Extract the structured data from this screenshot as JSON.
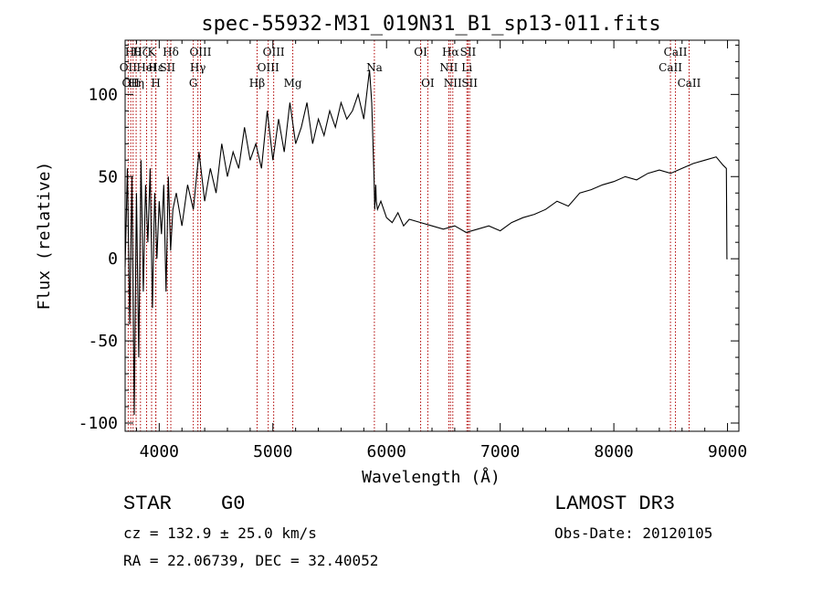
{
  "chart_data": {
    "type": "line",
    "title": "spec-55932-M31_019N31_B1_sp13-011.fits",
    "xlabel": "Wavelength (Å)",
    "ylabel": "Flux (relative)",
    "xlim": [
      3700,
      9100
    ],
    "ylim": [
      -105,
      133
    ],
    "x_ticks": [
      4000,
      5000,
      6000,
      7000,
      8000,
      9000
    ],
    "y_ticks": [
      -100,
      -50,
      0,
      50,
      100
    ],
    "series": [
      {
        "name": "spectrum",
        "x": [
          3700,
          3720,
          3740,
          3760,
          3780,
          3800,
          3820,
          3840,
          3860,
          3880,
          3900,
          3920,
          3940,
          3960,
          3980,
          4000,
          4020,
          4040,
          4060,
          4080,
          4100,
          4120,
          4150,
          4200,
          4250,
          4300,
          4350,
          4400,
          4450,
          4500,
          4550,
          4600,
          4650,
          4700,
          4750,
          4800,
          4850,
          4900,
          4950,
          5000,
          5050,
          5100,
          5150,
          5200,
          5250,
          5300,
          5350,
          5400,
          5450,
          5500,
          5550,
          5600,
          5650,
          5700,
          5750,
          5800,
          5850,
          5870,
          5890,
          5896,
          5905,
          5910,
          5920,
          5950,
          6000,
          6050,
          6100,
          6150,
          6200,
          6300,
          6400,
          6500,
          6600,
          6700,
          6800,
          6900,
          7000,
          7100,
          7200,
          7300,
          7400,
          7500,
          7600,
          7700,
          7800,
          7900,
          8000,
          8100,
          8200,
          8300,
          8400,
          8500,
          8600,
          8700,
          8800,
          8900,
          8960,
          8990,
          8995,
          9000
        ],
        "y": [
          -5,
          55,
          -40,
          50,
          -95,
          40,
          -60,
          60,
          -20,
          45,
          10,
          55,
          -30,
          40,
          0,
          35,
          15,
          45,
          -20,
          50,
          5,
          30,
          40,
          20,
          45,
          30,
          65,
          35,
          55,
          40,
          70,
          50,
          65,
          55,
          80,
          60,
          70,
          55,
          90,
          60,
          85,
          65,
          95,
          70,
          80,
          95,
          70,
          85,
          75,
          90,
          80,
          95,
          85,
          90,
          100,
          85,
          115,
          95,
          50,
          30,
          45,
          35,
          30,
          35,
          25,
          22,
          28,
          20,
          24,
          22,
          20,
          18,
          20,
          16,
          18,
          20,
          17,
          22,
          25,
          27,
          30,
          35,
          32,
          40,
          42,
          45,
          47,
          50,
          48,
          52,
          54,
          52,
          55,
          58,
          60,
          62,
          57,
          55,
          0,
          0
        ]
      }
    ],
    "line_markers": [
      {
        "wavelength": 3727,
        "label": "OII",
        "row": 2
      },
      {
        "wavelength": 3750,
        "label": "OII",
        "row": 3
      },
      {
        "wavelength": 3770,
        "label": "Hθ",
        "row": 1
      },
      {
        "wavelength": 3797,
        "label": "Hη",
        "row": 3
      },
      {
        "wavelength": 3835,
        "label": "Hζ",
        "row": 1
      },
      {
        "wavelength": 3889,
        "label": "HeI",
        "row": 2
      },
      {
        "wavelength": 3933,
        "label": "K",
        "row": 1
      },
      {
        "wavelength": 3970,
        "label": "H",
        "row": 3
      },
      {
        "wavelength": 3970,
        "label": "Hε",
        "row": 2
      },
      {
        "wavelength": 4072,
        "label": "SII",
        "row": 2
      },
      {
        "wavelength": 4102,
        "label": "Hδ",
        "row": 1
      },
      {
        "wavelength": 4300,
        "label": "G",
        "row": 3
      },
      {
        "wavelength": 4340,
        "label": "Hγ",
        "row": 2
      },
      {
        "wavelength": 4363,
        "label": "OIII",
        "row": 1
      },
      {
        "wavelength": 4861,
        "label": "Hβ",
        "row": 3
      },
      {
        "wavelength": 4959,
        "label": "OIII",
        "row": 2
      },
      {
        "wavelength": 5007,
        "label": "OIII",
        "row": 1
      },
      {
        "wavelength": 5175,
        "label": "Mg",
        "row": 3
      },
      {
        "wavelength": 5893,
        "label": "Na",
        "row": 2
      },
      {
        "wavelength": 6300,
        "label": "OI",
        "row": 1
      },
      {
        "wavelength": 6363,
        "label": "OI",
        "row": 3
      },
      {
        "wavelength": 6548,
        "label": "NII",
        "row": 2
      },
      {
        "wavelength": 6563,
        "label": "Hα",
        "row": 1
      },
      {
        "wavelength": 6583,
        "label": "NII",
        "row": 3
      },
      {
        "wavelength": 6707,
        "label": "Li",
        "row": 2
      },
      {
        "wavelength": 6717,
        "label": "SII",
        "row": 1
      },
      {
        "wavelength": 6731,
        "label": "SII",
        "row": 3
      },
      {
        "wavelength": 8498,
        "label": "CaII",
        "row": 2
      },
      {
        "wavelength": 8542,
        "label": "CaII",
        "row": 1
      },
      {
        "wavelength": 8662,
        "label": "CaII",
        "row": 3
      }
    ]
  },
  "footer": {
    "class_label": "STAR",
    "subclass": "G0",
    "survey": "LAMOST DR3",
    "redshift": "cz = 132.9 ± 25.0 km/s",
    "obs_date": "Obs-Date: 20120105",
    "coords": "RA =  22.06739, DEC =  32.40052"
  },
  "colors": {
    "spectrum": "#000000",
    "marker_line": "#b00000",
    "axis": "#000000"
  }
}
